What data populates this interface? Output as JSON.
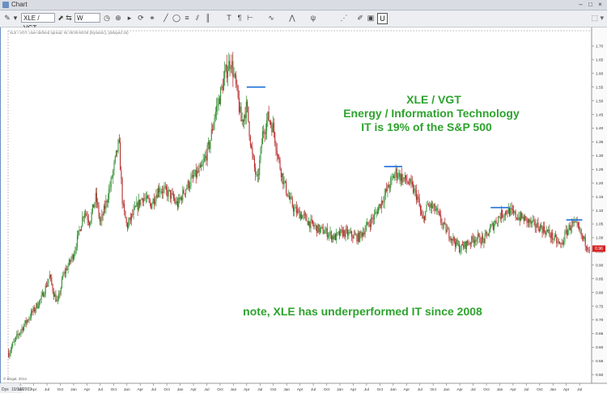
{
  "window": {
    "title": "Chart"
  },
  "toolbar": {
    "symbol": "XLE / VGT",
    "period": "W",
    "underline_button": "U"
  },
  "chart_data": {
    "type": "candlestick",
    "series_legend": "XLE / VGT, User-defined spread, W, 00:00-00:00 (Dynamic), (delayed 15)",
    "ylim": [
      0.48,
      1.75
    ],
    "y_ticks": [
      1.7,
      1.65,
      1.6,
      1.55,
      1.5,
      1.45,
      1.4,
      1.35,
      1.3,
      1.25,
      1.2,
      1.15,
      1.1,
      1.05,
      1.0,
      0.95,
      0.9,
      0.85,
      0.8,
      0.75,
      0.7,
      0.65,
      0.6,
      0.55,
      0.5
    ],
    "y_tick_labels": [
      "1.70",
      "1.65",
      "1.60",
      "1.55",
      "1.50",
      "1.45",
      "1.40",
      "1.35",
      "1.30",
      "1.25",
      "1.20",
      "1.15",
      "1.10",
      "1.05",
      "1.00",
      "0.95",
      "0.90",
      "0.85",
      "0.80",
      "0.75",
      "0.70",
      "0.65",
      "0.60",
      "0.55",
      "0.50"
    ],
    "last_price": "0.96",
    "x_start": 2003.77,
    "x_end": 2014.71,
    "x_months": [
      {
        "t": 2004.0,
        "label": "Jan"
      },
      {
        "t": 2004.25,
        "label": "Apr"
      },
      {
        "t": 2004.5,
        "label": "Jul"
      },
      {
        "t": 2004.75,
        "label": "Oct"
      },
      {
        "t": 2005.0,
        "label": "Jan"
      },
      {
        "t": 2005.25,
        "label": "Apr"
      },
      {
        "t": 2005.5,
        "label": "Jul"
      },
      {
        "t": 2005.75,
        "label": "Oct"
      },
      {
        "t": 2006.0,
        "label": "Jan"
      },
      {
        "t": 2006.25,
        "label": "Apr"
      },
      {
        "t": 2006.5,
        "label": "Jul"
      },
      {
        "t": 2006.75,
        "label": "Oct"
      },
      {
        "t": 2007.0,
        "label": "Jan"
      },
      {
        "t": 2007.25,
        "label": "Apr"
      },
      {
        "t": 2007.5,
        "label": "Jul"
      },
      {
        "t": 2007.75,
        "label": "Oct"
      },
      {
        "t": 2008.0,
        "label": "Jan"
      },
      {
        "t": 2008.25,
        "label": "Apr"
      },
      {
        "t": 2008.5,
        "label": "Jul"
      },
      {
        "t": 2008.75,
        "label": "Oct"
      },
      {
        "t": 2009.0,
        "label": "Jan"
      },
      {
        "t": 2009.25,
        "label": "Apr"
      },
      {
        "t": 2009.5,
        "label": "Jul"
      },
      {
        "t": 2009.75,
        "label": "Oct"
      },
      {
        "t": 2010.0,
        "label": "Jan"
      },
      {
        "t": 2010.25,
        "label": "Apr"
      },
      {
        "t": 2010.5,
        "label": "Jul"
      },
      {
        "t": 2010.75,
        "label": "Oct"
      },
      {
        "t": 2011.0,
        "label": "Jan"
      },
      {
        "t": 2011.25,
        "label": "Apr"
      },
      {
        "t": 2011.5,
        "label": "Jul"
      },
      {
        "t": 2011.75,
        "label": "Oct"
      },
      {
        "t": 2012.0,
        "label": "Jan"
      },
      {
        "t": 2012.25,
        "label": "Apr"
      },
      {
        "t": 2012.5,
        "label": "Jul"
      },
      {
        "t": 2012.75,
        "label": "Oct"
      },
      {
        "t": 2013.0,
        "label": "Jan"
      },
      {
        "t": 2013.25,
        "label": "Apr"
      },
      {
        "t": 2013.5,
        "label": "Jul"
      },
      {
        "t": 2013.75,
        "label": "Oct"
      },
      {
        "t": 2014.0,
        "label": "Jan"
      },
      {
        "t": 2014.25,
        "label": "Apr"
      },
      {
        "t": 2014.5,
        "label": "Jul"
      }
    ],
    "x_axis_left_labels": [
      "Dys",
      "10/13/2003"
    ],
    "path_points": [
      [
        2003.78,
        0.58
      ],
      [
        2004.0,
        0.66
      ],
      [
        2004.2,
        0.72
      ],
      [
        2004.4,
        0.78
      ],
      [
        2004.55,
        0.86
      ],
      [
        2004.62,
        0.8
      ],
      [
        2004.7,
        0.76
      ],
      [
        2004.8,
        0.86
      ],
      [
        2005.0,
        0.94
      ],
      [
        2005.1,
        1.02
      ],
      [
        2005.2,
        1.1
      ],
      [
        2005.3,
        1.06
      ],
      [
        2005.42,
        1.15
      ],
      [
        2005.5,
        1.05
      ],
      [
        2005.6,
        1.12
      ],
      [
        2005.7,
        1.2
      ],
      [
        2005.8,
        1.3
      ],
      [
        2005.85,
        1.35
      ],
      [
        2005.92,
        1.12
      ],
      [
        2006.0,
        1.04
      ],
      [
        2006.15,
        1.1
      ],
      [
        2006.3,
        1.15
      ],
      [
        2006.45,
        1.12
      ],
      [
        2006.6,
        1.18
      ],
      [
        2006.8,
        1.16
      ],
      [
        2006.95,
        1.12
      ],
      [
        2007.1,
        1.18
      ],
      [
        2007.25,
        1.22
      ],
      [
        2007.4,
        1.25
      ],
      [
        2007.55,
        1.34
      ],
      [
        2007.65,
        1.45
      ],
      [
        2007.75,
        1.52
      ],
      [
        2007.85,
        1.6
      ],
      [
        2007.95,
        1.65
      ],
      [
        2008.05,
        1.55
      ],
      [
        2008.15,
        1.42
      ],
      [
        2008.25,
        1.48
      ],
      [
        2008.35,
        1.3
      ],
      [
        2008.45,
        1.2
      ],
      [
        2008.55,
        1.38
      ],
      [
        2008.65,
        1.44
      ],
      [
        2008.75,
        1.4
      ],
      [
        2008.85,
        1.28
      ],
      [
        2008.95,
        1.2
      ],
      [
        2009.05,
        1.14
      ],
      [
        2009.15,
        1.1
      ],
      [
        2009.3,
        1.08
      ],
      [
        2009.45,
        1.05
      ],
      [
        2009.6,
        1.03
      ],
      [
        2009.75,
        1.02
      ],
      [
        2009.9,
        1.0
      ],
      [
        2010.05,
        1.02
      ],
      [
        2010.2,
        1.01
      ],
      [
        2010.35,
        1.0
      ],
      [
        2010.5,
        1.04
      ],
      [
        2010.65,
        1.08
      ],
      [
        2010.8,
        1.14
      ],
      [
        2010.95,
        1.2
      ],
      [
        2011.05,
        1.24
      ],
      [
        2011.15,
        1.22
      ],
      [
        2011.3,
        1.2
      ],
      [
        2011.45,
        1.15
      ],
      [
        2011.55,
        1.06
      ],
      [
        2011.65,
        1.12
      ],
      [
        2011.8,
        1.1
      ],
      [
        2011.95,
        1.04
      ],
      [
        2012.1,
        1.0
      ],
      [
        2012.25,
        0.96
      ],
      [
        2012.4,
        0.98
      ],
      [
        2012.55,
        1.0
      ],
      [
        2012.7,
        0.99
      ],
      [
        2012.85,
        1.04
      ],
      [
        2013.0,
        1.08
      ],
      [
        2013.15,
        1.1
      ],
      [
        2013.3,
        1.08
      ],
      [
        2013.45,
        1.07
      ],
      [
        2013.6,
        1.05
      ],
      [
        2013.75,
        1.04
      ],
      [
        2013.9,
        1.02
      ],
      [
        2014.05,
        0.99
      ],
      [
        2014.15,
        0.97
      ],
      [
        2014.25,
        1.02
      ],
      [
        2014.35,
        1.05
      ],
      [
        2014.45,
        1.04
      ],
      [
        2014.55,
        1.0
      ],
      [
        2014.65,
        0.97
      ],
      [
        2014.7,
        0.96
      ]
    ],
    "resistance_lines": [
      {
        "t0": 2008.25,
        "t1": 2008.6,
        "y": 1.55
      },
      {
        "t0": 2010.83,
        "t1": 2011.17,
        "y": 1.26
      },
      {
        "t0": 2012.83,
        "t1": 2013.17,
        "y": 1.11
      },
      {
        "t0": 2014.25,
        "t1": 2014.55,
        "y": 1.065
      }
    ],
    "annotations": {
      "title_line1": "XLE / VGT",
      "title_line2": "Energy / Information Technology",
      "title_line3": "IT is 19% of the S&P 500",
      "note": "note, XLE has underperformed IT since 2008"
    },
    "watermark": "© tGigal, 2014",
    "colors": {
      "up": "#2e8b2e",
      "down": "#b22222",
      "annotation": "#2ea32e",
      "resistance": "#1e6fd9",
      "last_price_bg": "#d62020"
    }
  }
}
